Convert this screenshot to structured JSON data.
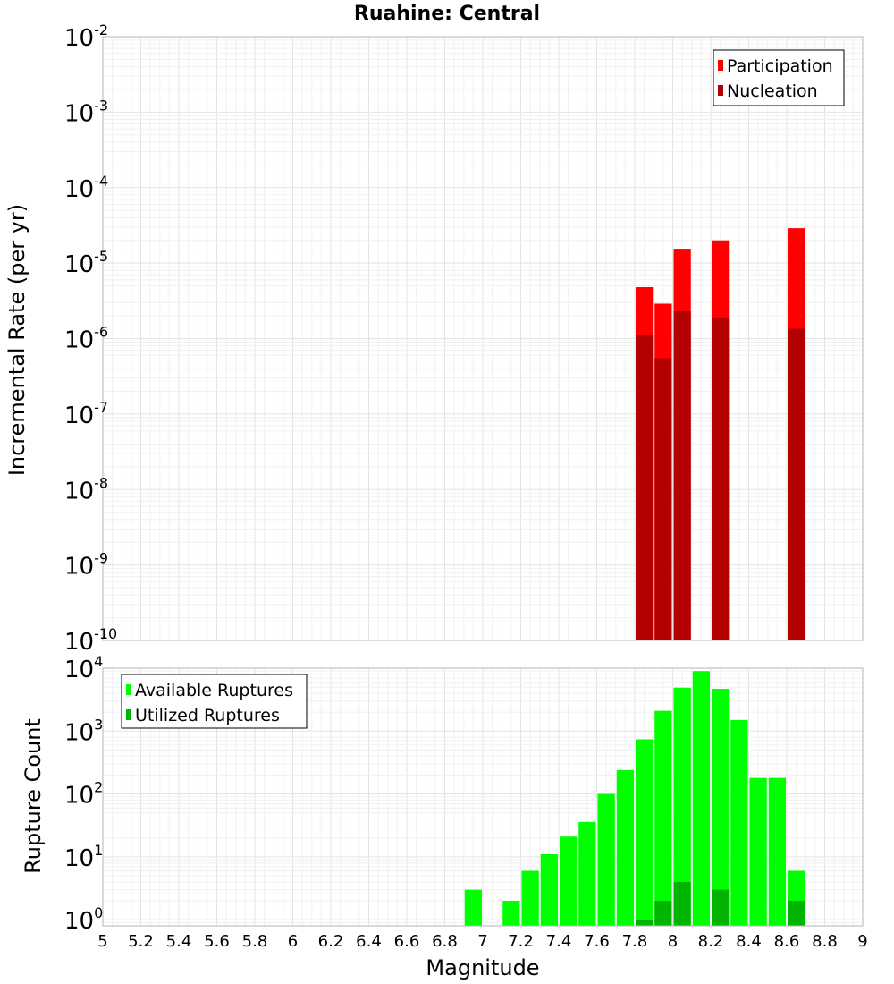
{
  "chart_data": [
    {
      "type": "bar",
      "title": "Ruahine: Central",
      "ylabel": "Incremental Rate (per yr)",
      "xlabel": "",
      "yscale": "log",
      "xlim": [
        5,
        9
      ],
      "ylim": [
        1e-10,
        0.01
      ],
      "grid": true,
      "legend_placement": "top-right",
      "y_tick_exponents": [
        "-10",
        "-9",
        "-8",
        "-7",
        "-6",
        "-5",
        "-4",
        "-3",
        "-2"
      ],
      "bar_width": 0.09,
      "series": [
        {
          "name": "Participation",
          "color": "#ff0000",
          "x": [
            7.85,
            7.95,
            8.05,
            8.25,
            8.65
          ],
          "values": [
            4.8e-06,
            2.9e-06,
            1.55e-05,
            2e-05,
            2.9e-05
          ]
        },
        {
          "name": "Nucleation",
          "color": "#b30000",
          "x": [
            7.85,
            7.95,
            8.05,
            8.25,
            8.65
          ],
          "values": [
            1.1e-06,
            5.5e-07,
            2.3e-06,
            1.9e-06,
            1.35e-06
          ]
        }
      ]
    },
    {
      "type": "bar",
      "title": "",
      "ylabel": "Rupture Count",
      "xlabel": "Magnitude",
      "yscale": "log",
      "xlim": [
        5,
        9
      ],
      "ylim": [
        0.8,
        10000
      ],
      "grid": true,
      "legend_placement": "top-left",
      "x_ticks": [
        "5",
        "5.2",
        "5.4",
        "5.6",
        "5.8",
        "6",
        "6.2",
        "6.4",
        "6.6",
        "6.8",
        "7",
        "7.2",
        "7.4",
        "7.6",
        "7.8",
        "8",
        "8.2",
        "8.4",
        "8.6",
        "8.8",
        "9"
      ],
      "y_tick_exponents": [
        "0",
        "1",
        "2",
        "3",
        "4"
      ],
      "bar_width": 0.09,
      "series": [
        {
          "name": "Available Ruptures",
          "color": "#00ff00",
          "x": [
            6.95,
            7.15,
            7.25,
            7.35,
            7.45,
            7.55,
            7.65,
            7.75,
            7.85,
            7.95,
            8.05,
            8.15,
            8.25,
            8.35,
            8.45,
            8.55,
            8.65
          ],
          "values": [
            3,
            2,
            6,
            11,
            21,
            36,
            100,
            240,
            740,
            2100,
            4900,
            9000,
            4700,
            1500,
            180,
            180,
            6
          ]
        },
        {
          "name": "Utilized Ruptures",
          "color": "#00b400",
          "x": [
            7.85,
            7.95,
            8.05,
            8.25,
            8.65
          ],
          "values": [
            1,
            2,
            4,
            3,
            2
          ]
        }
      ]
    }
  ]
}
